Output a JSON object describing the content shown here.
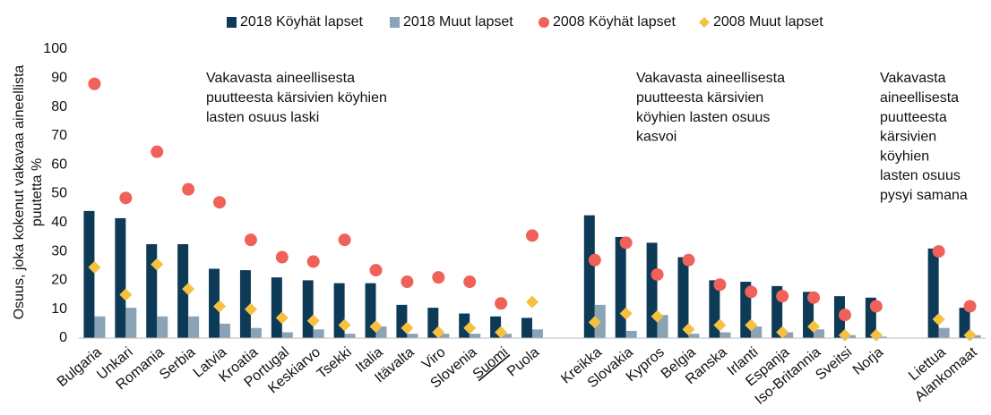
{
  "chart_data": {
    "type": "bar",
    "ylabel": [
      "Osuus, joka kokenut vakavaa aineellista",
      "puutetta %"
    ],
    "categories": [
      "Bulgaria",
      "Unkari",
      "Romania",
      "Serbia",
      "Latvia",
      "Kroatia",
      "Portugal",
      "Keskiarvo",
      "Tsekki",
      "Italia",
      "Itävalta",
      "Viro",
      "Slovenia",
      "Suomi",
      "Puola",
      null,
      "Kreikka",
      "Slovakia",
      "Kypros",
      "Belgia",
      "Ranska",
      "Irlanti",
      "Espanja",
      "Iso-Britannia",
      "Sveitsi",
      "Norja",
      null,
      "Liettua",
      "Alankomaat"
    ],
    "underlined_category": "Suomi",
    "series": [
      {
        "name": "2018 Köyhät lapset",
        "color": "#0d3a57",
        "mark": "bar",
        "values": [
          44,
          41.5,
          32.5,
          32.5,
          24,
          23.5,
          21,
          20,
          19,
          19,
          11.5,
          10.5,
          8.5,
          7.5,
          7,
          null,
          42.5,
          35,
          33,
          28,
          20,
          19.5,
          18,
          16,
          14.5,
          14,
          null,
          31,
          10.5
        ]
      },
      {
        "name": "2018 Muut lapset",
        "color": "#8ba3b5",
        "mark": "bar",
        "values": [
          7.5,
          10.5,
          7.5,
          7.5,
          5,
          3.5,
          2,
          3,
          1.5,
          4,
          1.5,
          1.5,
          1.5,
          1.5,
          3,
          null,
          11.5,
          2.5,
          8,
          1.5,
          2,
          4,
          2,
          3,
          1,
          0.5,
          null,
          3.5,
          1
        ]
      },
      {
        "name": "2008 Köyhät lapset",
        "color": "#ef6159",
        "mark": "circle",
        "values": [
          88,
          48.5,
          64.5,
          51.5,
          47,
          34,
          28,
          26.5,
          34,
          23.5,
          19.5,
          21,
          19.5,
          12,
          35.5,
          null,
          27,
          33,
          22,
          27,
          18.5,
          16,
          14.5,
          14,
          8,
          11,
          null,
          30,
          11
        ]
      },
      {
        "name": "2008 Muut lapset",
        "color": "#f6c143",
        "mark": "diamond",
        "values": [
          24.5,
          15,
          25.5,
          17,
          11,
          10,
          7,
          6,
          4.5,
          4,
          3.5,
          2,
          3.5,
          2,
          12.5,
          null,
          5.5,
          8.5,
          7.5,
          3,
          4.5,
          4.5,
          2,
          4,
          1,
          1,
          null,
          6.5,
          1
        ]
      }
    ],
    "annotations": [
      [
        "Vakavasta aineellisesta",
        "puutteesta kärsivien köyhien",
        "lasten osuus laski"
      ],
      [
        "Vakavasta aineellisesta",
        "puutteesta kärsivien",
        "köyhien lasten osuus",
        "kasvoi"
      ],
      [
        "Vakavasta",
        "aineellisesta",
        "puutteesta",
        "kärsivien",
        "köyhien",
        "lasten osuus",
        "pysyi samana"
      ]
    ],
    "ylim": [
      0,
      100
    ],
    "yticks": [
      0,
      10,
      20,
      30,
      40,
      50,
      60,
      70,
      80,
      90,
      100
    ],
    "grid": false,
    "legend": "top"
  }
}
